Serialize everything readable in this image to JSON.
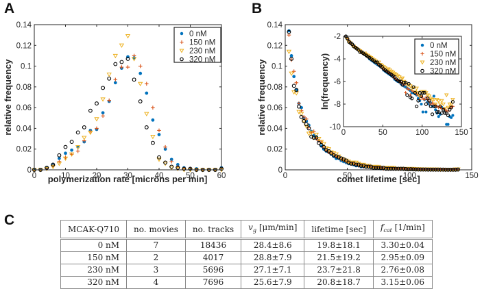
{
  "panels": {
    "a_label": "A",
    "b_label": "B",
    "c_label": "C"
  },
  "series_styles": [
    {
      "name": "0 nM",
      "marker": "filled-circle",
      "color": "#0072BD"
    },
    {
      "name": "150 nM",
      "marker": "plus",
      "color": "#D95319"
    },
    {
      "name": "230 nM",
      "marker": "down-triangle",
      "color": "#EDB120"
    },
    {
      "name": "320 nM",
      "marker": "open-circle",
      "color": "#000000"
    }
  ],
  "chart_data": [
    {
      "id": "A",
      "type": "scatter",
      "title": "",
      "xlabel": "polymerization rate [microns per min]",
      "ylabel": "relative frequency",
      "xlim": [
        0,
        60
      ],
      "ylim": [
        0,
        0.14
      ],
      "xticks": [
        0,
        10,
        20,
        30,
        40,
        50,
        60
      ],
      "xtick_labels": [
        "0",
        "10",
        "20",
        "30",
        "40",
        "50",
        "60"
      ],
      "yticks": [
        0,
        0.02,
        0.04,
        0.06,
        0.08,
        0.1,
        0.12,
        0.14
      ],
      "ytick_labels": [
        "0",
        "0.02",
        "0.04",
        "0.06",
        "0.08",
        "0.1",
        "0.12",
        "0.14"
      ],
      "grid": false,
      "legend": {
        "position": "top-right",
        "entries": [
          "0 nM",
          "150 nM",
          "230 nM",
          "320 nM"
        ]
      },
      "x": [
        0,
        2,
        4,
        6,
        8,
        10,
        12,
        14,
        16,
        18,
        20,
        22,
        24,
        26,
        28,
        30,
        32,
        34,
        36,
        38,
        40,
        42,
        44,
        46,
        48,
        50,
        52,
        54,
        56,
        58,
        60
      ],
      "series": [
        {
          "name": "0 nM",
          "values": [
            0,
            0,
            0.002,
            0.005,
            0.011,
            0.016,
            0.019,
            0.022,
            0.027,
            0.038,
            0.039,
            0.055,
            0.066,
            0.084,
            0.098,
            0.109,
            0.108,
            0.093,
            0.074,
            0.048,
            0.034,
            0.02,
            0.01,
            0.005,
            0.002,
            0.001,
            0.001,
            0,
            0,
            0,
            0.002
          ]
        },
        {
          "name": "150 nM",
          "values": [
            0,
            0,
            0.001,
            0.004,
            0.008,
            0.012,
            0.015,
            0.018,
            0.028,
            0.037,
            0.04,
            0.052,
            0.067,
            0.087,
            0.099,
            0.099,
            0.11,
            0.1,
            0.083,
            0.06,
            0.038,
            0.022,
            0.008,
            0.003,
            0.001,
            0.001,
            0,
            0,
            0,
            0,
            0.001
          ]
        },
        {
          "name": "230 nM",
          "values": [
            0,
            0,
            0.001,
            0.003,
            0.006,
            0.011,
            0.015,
            0.022,
            0.031,
            0.036,
            0.049,
            0.068,
            0.092,
            0.11,
            0.12,
            0.129,
            0.107,
            0.083,
            0.054,
            0.032,
            0.01,
            0.006,
            0.002,
            0.001,
            0,
            0,
            0,
            0,
            0,
            0,
            0
          ]
        },
        {
          "name": "320 nM",
          "values": [
            0,
            0,
            0.002,
            0.005,
            0.014,
            0.022,
            0.027,
            0.036,
            0.041,
            0.057,
            0.064,
            0.079,
            0.088,
            0.102,
            0.104,
            0.107,
            0.087,
            0.066,
            0.041,
            0.026,
            0.012,
            0.007,
            0.003,
            0.002,
            0.001,
            0.001,
            0,
            0,
            0,
            0,
            0.001
          ]
        }
      ]
    },
    {
      "id": "B",
      "type": "scatter",
      "title": "",
      "xlabel": "comet lifetime [sec]",
      "ylabel": "relative frequency",
      "xlim": [
        0,
        150
      ],
      "ylim": [
        0,
        0.14
      ],
      "xticks": [
        0,
        50,
        100,
        150
      ],
      "xtick_labels": [
        "0",
        "50",
        "100",
        "150"
      ],
      "yticks": [
        0,
        0.02,
        0.04,
        0.06,
        0.08,
        0.1,
        0.12,
        0.14
      ],
      "ytick_labels": [
        "0",
        "0.02",
        "0.04",
        "0.06",
        "0.08",
        "0.1",
        "0.12",
        "0.14"
      ],
      "grid": false,
      "x": [
        3,
        5,
        7,
        9,
        11,
        13,
        15,
        17,
        19,
        21,
        23,
        25,
        27,
        29,
        31,
        33,
        35,
        37,
        39,
        41,
        43,
        45,
        47,
        49,
        51,
        53,
        55,
        57,
        59,
        61,
        63,
        65,
        67,
        69,
        71,
        73,
        75,
        77,
        79,
        81,
        83,
        85,
        87,
        89,
        91,
        93,
        95,
        97,
        99,
        101,
        103,
        105,
        107,
        109,
        111,
        113,
        115,
        117,
        119,
        121,
        123,
        125,
        127,
        129,
        131,
        133,
        135,
        137,
        139
      ],
      "series": [
        {
          "name": "0 nM",
          "values": [
            0.134,
            0.11,
            0.09,
            0.077,
            0.064,
            0.06,
            0.05,
            0.047,
            0.043,
            0.037,
            0.033,
            0.032,
            0.028,
            0.023,
            0.02,
            0.018,
            0.017,
            0.015,
            0.013,
            0.011,
            0.011,
            0.009,
            0.008,
            0.007,
            0.006,
            0.006,
            0.005,
            0.004,
            0.004,
            0.003,
            0.003,
            0.003,
            0.003,
            0.002,
            0.002,
            0.002,
            0.002,
            0.001,
            0.001,
            0.001,
            0.001,
            0.001,
            0.001,
            0.001,
            0.001,
            0.001,
            0.0005,
            0.0005,
            0.0005,
            0.0005,
            0.0005,
            0.0003,
            0.0003,
            0.0003,
            0.0003,
            0.0003,
            0.0002,
            0.0002,
            0.0002,
            0.0002,
            0.0002,
            0.0001,
            0.0001,
            0.0001,
            0.0001,
            0.0001,
            0.0001,
            0.0001,
            0.0001
          ]
        },
        {
          "name": "150 nM",
          "values": [
            0.13,
            0.106,
            0.095,
            0.084,
            0.064,
            0.057,
            0.051,
            0.049,
            0.041,
            0.036,
            0.037,
            0.03,
            0.028,
            0.027,
            0.022,
            0.019,
            0.017,
            0.016,
            0.015,
            0.013,
            0.012,
            0.01,
            0.009,
            0.008,
            0.007,
            0.006,
            0.006,
            0.005,
            0.004,
            0.004,
            0.003,
            0.003,
            0.003,
            0.002,
            0.002,
            0.002,
            0.002,
            0.002,
            0.001,
            0.001,
            0.001,
            0.001,
            0.001,
            0.001,
            0.001,
            0.001,
            0.001,
            0.0008,
            0.0007,
            0.0007,
            0.0006,
            0.0005,
            0.0005,
            0.0004,
            0.0004,
            0.0004,
            0.0003,
            0.0003,
            0.0003,
            0.0002,
            0.0002,
            0.0002,
            0.0002,
            0.0002,
            0.0001,
            0.0001,
            0.0002,
            0.0002,
            0.0002
          ]
        },
        {
          "name": "230 nM",
          "values": [
            0.114,
            0.093,
            0.075,
            0.074,
            0.056,
            0.054,
            0.047,
            0.042,
            0.035,
            0.036,
            0.031,
            0.034,
            0.03,
            0.027,
            0.025,
            0.021,
            0.02,
            0.017,
            0.016,
            0.015,
            0.013,
            0.011,
            0.01,
            0.009,
            0.008,
            0.007,
            0.007,
            0.007,
            0.006,
            0.005,
            0.005,
            0.004,
            0.004,
            0.003,
            0.003,
            0.003,
            0.003,
            0.002,
            0.002,
            0.002,
            0.002,
            0.002,
            0.002,
            0.001,
            0.001,
            0.001,
            0.001,
            0.001,
            0.001,
            0.001,
            0.001,
            0.0008,
            0.0007,
            0.0007,
            0.0006,
            0.0006,
            0.0005,
            0.0005,
            0.0004,
            0.0004,
            0.0004,
            0.0003,
            0.0003,
            0.0003,
            0.0003,
            0.0003,
            0.0003,
            0.0005,
            0.0005
          ]
        },
        {
          "name": "320 nM",
          "values": [
            0.133,
            0.107,
            0.081,
            0.077,
            0.061,
            0.051,
            0.047,
            0.044,
            0.04,
            0.032,
            0.031,
            0.031,
            0.026,
            0.024,
            0.022,
            0.019,
            0.018,
            0.016,
            0.014,
            0.013,
            0.012,
            0.011,
            0.01,
            0.009,
            0.007,
            0.006,
            0.006,
            0.005,
            0.005,
            0.004,
            0.004,
            0.003,
            0.003,
            0.003,
            0.002,
            0.002,
            0.002,
            0.002,
            0.002,
            0.001,
            0.001,
            0.001,
            0.001,
            0.001,
            0.001,
            0.001,
            0.001,
            0.0007,
            0.0005,
            0.0006,
            0.0005,
            0.0004,
            0.0004,
            0.0003,
            0.0003,
            0.0003,
            0.0002,
            0.0002,
            0.0002,
            0.0002,
            0.0002,
            0.0002,
            0.0002,
            0.0001,
            0.0001,
            0.0001,
            0.0001,
            0.0001,
            0.0003
          ]
        }
      ]
    },
    {
      "id": "B-inset",
      "type": "scatter",
      "title": "",
      "xlabel": "",
      "ylabel": "ln(frequency)",
      "xlim": [
        0,
        150
      ],
      "ylim": [
        -10,
        -2
      ],
      "xticks": [
        0,
        50,
        100,
        150
      ],
      "xtick_labels": [
        "0",
        "50",
        "100",
        "150"
      ],
      "yticks": [
        -10,
        -8,
        -6,
        -4,
        -2
      ],
      "ytick_labels": [
        "-10",
        "-8",
        "-6",
        "-4",
        "-2"
      ],
      "grid": false,
      "legend": {
        "position": "top-right",
        "entries": [
          "0 nM",
          "150 nM",
          "230 nM",
          "320 nM"
        ]
      },
      "x": [
        3,
        5,
        7,
        9,
        11,
        13,
        15,
        17,
        19,
        21,
        23,
        25,
        27,
        29,
        31,
        33,
        35,
        37,
        39,
        41,
        43,
        45,
        47,
        49,
        51,
        53,
        55,
        57,
        59,
        61,
        63,
        65,
        67,
        69,
        71,
        73,
        75,
        77,
        79,
        81,
        83,
        85,
        87,
        89,
        91,
        93,
        95,
        97,
        99,
        101,
        103,
        105,
        107,
        109,
        111,
        113,
        115,
        117,
        119,
        121,
        123,
        125,
        127,
        129,
        131,
        133,
        135,
        137,
        139
      ],
      "series": [
        {
          "name": "0 nM",
          "values": [
            -2.0,
            -2.2,
            -2.4,
            -2.6,
            -2.7,
            -2.8,
            -3.0,
            -3.1,
            -3.2,
            -3.3,
            -3.4,
            -3.5,
            -3.6,
            -3.7,
            -3.8,
            -4.0,
            -4.1,
            -4.2,
            -4.3,
            -4.4,
            -4.5,
            -4.6,
            -4.7,
            -4.8,
            -5.0,
            -5.1,
            -5.2,
            -5.3,
            -5.4,
            -5.5,
            -5.6,
            -5.8,
            -5.9,
            -6.0,
            -6.0,
            -6.2,
            -6.3,
            -6.4,
            -6.5,
            -6.6,
            -6.7,
            -6.8,
            -7.0,
            -7.0,
            -7.1,
            -7.2,
            -7.5,
            -7.7,
            -8.0,
            -8.7,
            -7.6,
            -8.7,
            -7.8,
            -8.0,
            -7.9,
            -8.2,
            -7.3,
            -8.5,
            -8.8,
            -9.1,
            -8.9,
            -8.3,
            -8.4,
            -8.6,
            -9.8,
            -9.8,
            -9.1,
            -9.2,
            -9.0
          ]
        },
        {
          "name": "150 nM",
          "values": [
            -2.0,
            -2.2,
            -2.4,
            -2.5,
            -2.7,
            -2.8,
            -2.9,
            -3.0,
            -3.2,
            -3.3,
            -3.3,
            -3.5,
            -3.6,
            -3.6,
            -3.8,
            -3.9,
            -4.0,
            -4.1,
            -4.2,
            -4.3,
            -4.4,
            -4.5,
            -4.7,
            -4.8,
            -4.9,
            -5.0,
            -5.1,
            -5.2,
            -5.3,
            -5.4,
            -5.6,
            -5.7,
            -5.8,
            -5.9,
            -6.0,
            -6.1,
            -6.2,
            -6.3,
            -7.0,
            -6.6,
            -6.7,
            -7.2,
            -6.8,
            -6.9,
            -7.0,
            -7.1,
            -7.2,
            -7.6,
            -7.3,
            -7.5,
            -7.6,
            -7.4,
            -7.6,
            -7.8,
            -8.0,
            -7.9,
            -8.0,
            -8.1,
            -8.2,
            -8.3,
            -8.2,
            -8.4,
            -8.4,
            -8.5,
            -8.6,
            -8.6,
            -8.3,
            -8.3,
            -8.2
          ]
        },
        {
          "name": "230 nM",
          "values": [
            -2.1,
            -2.3,
            -2.5,
            -2.6,
            -2.8,
            -2.9,
            -3.0,
            -3.1,
            -3.2,
            -3.3,
            -3.4,
            -3.5,
            -3.5,
            -3.6,
            -3.7,
            -3.8,
            -3.9,
            -4.0,
            -4.1,
            -4.2,
            -4.3,
            -4.3,
            -4.5,
            -4.6,
            -4.7,
            -4.8,
            -4.9,
            -4.9,
            -5.0,
            -5.1,
            -5.2,
            -5.3,
            -5.4,
            -5.5,
            -5.6,
            -5.8,
            -5.7,
            -6.0,
            -6.1,
            -6.3,
            -6.3,
            -6.4,
            -6.6,
            -6.5,
            -6.9,
            -6.6,
            -7.0,
            -7.3,
            -6.9,
            -6.9,
            -6.9,
            -7.0,
            -7.2,
            -7.3,
            -7.5,
            -7.6,
            -7.6,
            -8.0,
            -7.6,
            -7.7,
            -8.0,
            -7.7,
            -8.0,
            -8.4,
            -7.2,
            -8.3,
            -8.0,
            -8.0,
            -7.6
          ]
        },
        {
          "name": "320 nM",
          "values": [
            -2.0,
            -2.2,
            -2.5,
            -2.6,
            -2.7,
            -2.9,
            -3.0,
            -3.1,
            -3.2,
            -3.4,
            -3.4,
            -3.5,
            -3.6,
            -3.7,
            -3.8,
            -3.9,
            -4.0,
            -4.1,
            -4.2,
            -4.3,
            -4.3,
            -4.5,
            -4.6,
            -4.7,
            -4.9,
            -5.0,
            -5.1,
            -5.2,
            -5.3,
            -5.4,
            -5.5,
            -5.6,
            -5.8,
            -5.9,
            -6.0,
            -6.0,
            -6.3,
            -6.1,
            -6.1,
            -7.2,
            -6.2,
            -7.4,
            -7.5,
            -6.5,
            -7.0,
            -8.2,
            -7.7,
            -7.0,
            -7.3,
            -7.0,
            -7.0,
            -8.0,
            -7.5,
            -7.7,
            -8.2,
            -8.9,
            -8.2,
            -8.2,
            -8.7,
            -8.7,
            -8.2,
            -8.8,
            -8.5,
            -8.8,
            -8.8,
            -9.0,
            -8.5,
            -8.3,
            -7.8
          ]
        }
      ]
    }
  ],
  "table": {
    "headers": [
      "MCAK-Q710",
      "no. movies",
      "no. tracks",
      "v",
      "g",
      " [μm/min]",
      "lifetime [sec]",
      "f",
      "cat",
      " [1/min]"
    ],
    "header_labels": {
      "condition": "MCAK-Q710",
      "movies": "no. movies",
      "tracks": "no. tracks",
      "vg_symbol": "v",
      "vg_sub": "g",
      "vg_unit": " [μm/min]",
      "lifetime": "lifetime [sec]",
      "fcat_symbol": "f",
      "fcat_sub": "cat",
      "fcat_unit": " [1/min]"
    },
    "rows": [
      {
        "condition": "0 nM",
        "movies": "7",
        "tracks": "18436",
        "vg": "28.4±8.6",
        "lifetime": "19.8±18.1",
        "fcat": "3.30±0.04"
      },
      {
        "condition": "150 nM",
        "movies": "2",
        "tracks": "4017",
        "vg": "28.8±7.9",
        "lifetime": "21.5±19.2",
        "fcat": "2.95±0.09"
      },
      {
        "condition": "230 nM",
        "movies": "3",
        "tracks": "5696",
        "vg": "27.1±7.1",
        "lifetime": "23.7±21.8",
        "fcat": "2.76±0.08"
      },
      {
        "condition": "320 nM",
        "movies": "4",
        "tracks": "7696",
        "vg": "25.6±7.9",
        "lifetime": "20.8±18.7",
        "fcat": "3.15±0.06"
      }
    ]
  }
}
